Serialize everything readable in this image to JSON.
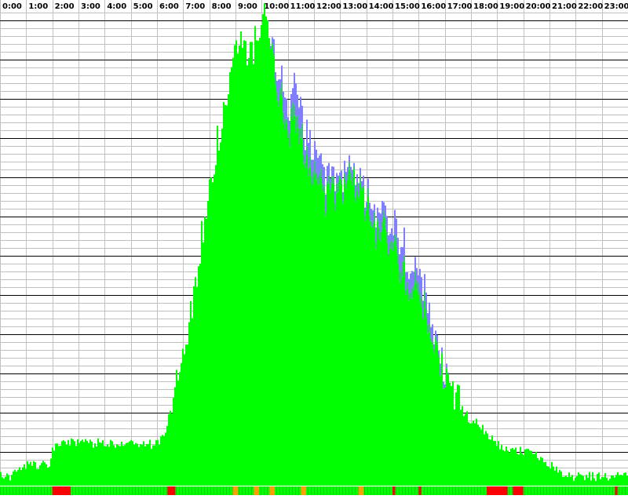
{
  "chart_data": {
    "type": "bar",
    "title": "",
    "xlabel": "",
    "ylabel": "",
    "x_tick_labels": [
      "0:00",
      "1:00",
      "2:00",
      "3:00",
      "4:00",
      "5:00",
      "6:00",
      "7:00",
      "8:00",
      "9:00",
      "10:00",
      "11:00",
      "12:00",
      "13:00",
      "14:00",
      "15:00",
      "16:00",
      "17:00",
      "18:00",
      "19:00",
      "20:00",
      "21:00",
      "22:00",
      "23:00"
    ],
    "xlim": [
      0,
      24
    ],
    "ylim": [
      0,
      30
    ],
    "grid": true,
    "legend": "none",
    "colors": {
      "primary": "#00ff00",
      "secondary": "#7f7fff",
      "tertiary": "#3fbf7f",
      "alert": "#ff0000",
      "warning": "#ff9f00",
      "grid_minor": "#c0c0c0",
      "grid_major": "#000000",
      "background": "#ffffff"
    },
    "series": [
      {
        "key": "green",
        "profile": [
          [
            0.0,
            0.6
          ],
          [
            0.5,
            0.6
          ],
          [
            0.7,
            1.2
          ],
          [
            1.0,
            1.3
          ],
          [
            1.3,
            1.3
          ],
          [
            1.9,
            1.3
          ],
          [
            2.0,
            2.3
          ],
          [
            2.2,
            2.7
          ],
          [
            3.0,
            2.7
          ],
          [
            4.0,
            2.7
          ],
          [
            5.0,
            2.7
          ],
          [
            5.9,
            2.6
          ],
          [
            6.2,
            3.0
          ],
          [
            6.5,
            4.5
          ],
          [
            6.8,
            7.0
          ],
          [
            7.0,
            9.0
          ],
          [
            7.3,
            11.0
          ],
          [
            7.6,
            14.5
          ],
          [
            7.9,
            18.0
          ],
          [
            8.2,
            21.0
          ],
          [
            8.5,
            23.0
          ],
          [
            8.8,
            25.5
          ],
          [
            9.0,
            27.5
          ],
          [
            9.2,
            28.5
          ],
          [
            9.4,
            28.0
          ],
          [
            9.6,
            27.0
          ],
          [
            9.8,
            28.5
          ],
          [
            10.0,
            30.0
          ],
          [
            10.2,
            29.5
          ],
          [
            10.4,
            27.0
          ],
          [
            10.6,
            25.0
          ],
          [
            10.8,
            23.5
          ],
          [
            11.0,
            22.0
          ],
          [
            11.2,
            22.5
          ],
          [
            11.4,
            22.0
          ],
          [
            11.6,
            21.5
          ],
          [
            11.8,
            20.5
          ],
          [
            12.0,
            19.5
          ],
          [
            12.2,
            18.5
          ],
          [
            12.4,
            18.0
          ],
          [
            12.6,
            18.0
          ],
          [
            12.8,
            18.5
          ],
          [
            13.0,
            18.5
          ],
          [
            13.2,
            19.0
          ],
          [
            13.4,
            19.5
          ],
          [
            13.6,
            19.0
          ],
          [
            13.8,
            18.5
          ],
          [
            14.0,
            17.5
          ],
          [
            14.3,
            16.0
          ],
          [
            14.6,
            16.0
          ],
          [
            14.9,
            15.5
          ],
          [
            15.2,
            14.0
          ],
          [
            15.5,
            13.0
          ],
          [
            15.8,
            12.0
          ],
          [
            16.1,
            11.0
          ],
          [
            16.4,
            10.0
          ],
          [
            16.7,
            8.5
          ],
          [
            17.0,
            7.0
          ],
          [
            17.3,
            6.0
          ],
          [
            17.6,
            5.0
          ],
          [
            17.9,
            4.3
          ],
          [
            18.2,
            4.0
          ],
          [
            18.5,
            3.5
          ],
          [
            18.8,
            3.0
          ],
          [
            19.1,
            2.5
          ],
          [
            19.4,
            2.2
          ],
          [
            19.7,
            2.2
          ],
          [
            20.0,
            2.2
          ],
          [
            20.3,
            2.0
          ],
          [
            20.6,
            1.8
          ],
          [
            20.9,
            1.5
          ],
          [
            21.2,
            1.2
          ],
          [
            21.6,
            0.6
          ],
          [
            22.0,
            0.6
          ],
          [
            23.0,
            0.6
          ],
          [
            23.9,
            0.6
          ]
        ]
      },
      {
        "key": "blue",
        "profile": [
          [
            0,
            0
          ],
          [
            10.3,
            0
          ],
          [
            10.5,
            0.8
          ],
          [
            10.8,
            1.2
          ],
          [
            11.0,
            1.5
          ],
          [
            11.5,
            1.3
          ],
          [
            12.0,
            1.0
          ],
          [
            12.5,
            0.7
          ],
          [
            13.0,
            0.5
          ],
          [
            13.5,
            0.5
          ],
          [
            14.0,
            0.5
          ],
          [
            14.5,
            0.8
          ],
          [
            15.0,
            1.0
          ],
          [
            15.5,
            1.2
          ],
          [
            16.0,
            1.0
          ],
          [
            16.5,
            0.8
          ],
          [
            17.0,
            0.3
          ],
          [
            17.2,
            0
          ],
          [
            24,
            0
          ]
        ]
      },
      {
        "key": "teal",
        "profile": [
          [
            0,
            0
          ],
          [
            10.3,
            0
          ],
          [
            10.6,
            0.5
          ],
          [
            11.0,
            0.8
          ],
          [
            11.5,
            0.8
          ],
          [
            12.0,
            0.6
          ],
          [
            12.5,
            0.5
          ],
          [
            13.0,
            0.4
          ],
          [
            13.5,
            0.4
          ],
          [
            14.0,
            0.4
          ],
          [
            14.5,
            0.5
          ],
          [
            15.0,
            0.6
          ],
          [
            15.5,
            0.7
          ],
          [
            16.0,
            0.5
          ],
          [
            16.5,
            0.4
          ],
          [
            17.0,
            0
          ],
          [
            24,
            0
          ]
        ]
      }
    ],
    "status_strip": [
      {
        "from": 2.0,
        "to": 2.7,
        "status": "red"
      },
      {
        "from": 6.4,
        "to": 6.7,
        "status": "red"
      },
      {
        "from": 8.9,
        "to": 9.1,
        "status": "orange"
      },
      {
        "from": 9.7,
        "to": 9.9,
        "status": "orange"
      },
      {
        "from": 10.3,
        "to": 10.5,
        "status": "orange"
      },
      {
        "from": 11.5,
        "to": 11.7,
        "status": "orange"
      },
      {
        "from": 13.7,
        "to": 13.9,
        "status": "orange"
      },
      {
        "from": 15.0,
        "to": 15.1,
        "status": "red"
      },
      {
        "from": 16.0,
        "to": 16.1,
        "status": "red"
      },
      {
        "from": 18.6,
        "to": 19.4,
        "status": "red"
      },
      {
        "from": 19.6,
        "to": 20.0,
        "status": "red"
      },
      {
        "from": 23.5,
        "to": 23.6,
        "status": "red"
      }
    ]
  }
}
